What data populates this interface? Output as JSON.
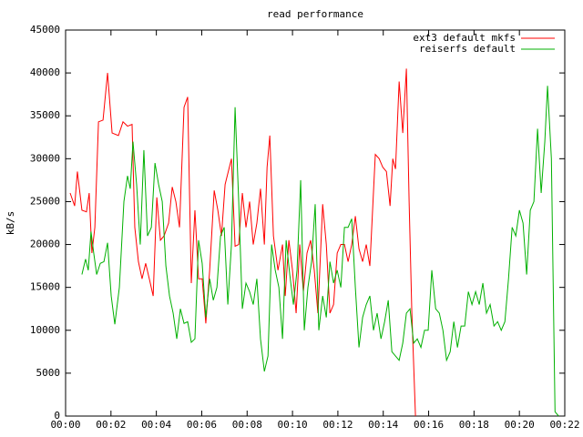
{
  "chart_data": {
    "type": "line",
    "title": "read performance",
    "y_label": "kB/s",
    "xlim": [
      0,
      22
    ],
    "ylim": [
      0,
      45000
    ],
    "xticks": [
      {
        "value": 0,
        "label": "00:00"
      },
      {
        "value": 2,
        "label": "00:02"
      },
      {
        "value": 4,
        "label": "00:04"
      },
      {
        "value": 6,
        "label": "00:06"
      },
      {
        "value": 8,
        "label": "00:08"
      },
      {
        "value": 10,
        "label": "00:10"
      },
      {
        "value": 12,
        "label": "00:12"
      },
      {
        "value": 14,
        "label": "00:14"
      },
      {
        "value": 16,
        "label": "00:16"
      },
      {
        "value": 18,
        "label": "00:18"
      },
      {
        "value": 20,
        "label": "00:20"
      },
      {
        "value": 22,
        "label": "00:22"
      }
    ],
    "yticks": [
      0,
      5000,
      10000,
      15000,
      20000,
      25000,
      30000,
      35000,
      40000,
      45000
    ],
    "grid": false,
    "legend": "top-right",
    "series": [
      {
        "name": "ext3 default mkfs",
        "color": "#ff0000",
        "x": [
          0.2,
          0.4,
          0.52,
          0.72,
          0.92,
          1.04,
          1.16,
          1.29,
          1.45,
          1.65,
          1.85,
          2.05,
          2.33,
          2.53,
          2.73,
          2.93,
          3.05,
          3.21,
          3.37,
          3.53,
          3.69,
          3.86,
          4.02,
          4.18,
          4.34,
          4.54,
          4.7,
          4.86,
          5.02,
          5.22,
          5.38,
          5.54,
          5.7,
          5.86,
          6.02,
          6.18,
          6.35,
          6.55,
          6.71,
          6.87,
          7.03,
          7.31,
          7.47,
          7.63,
          7.79,
          7.95,
          8.11,
          8.27,
          8.43,
          8.59,
          8.76,
          8.88,
          9.0,
          9.16,
          9.36,
          9.56,
          9.68,
          9.84,
          10.0,
          10.16,
          10.32,
          10.48,
          10.64,
          10.8,
          10.96,
          11.12,
          11.33,
          11.49,
          11.65,
          11.81,
          11.97,
          12.13,
          12.29,
          12.45,
          12.61,
          12.77,
          12.93,
          13.09,
          13.25,
          13.41,
          13.65,
          13.82,
          13.98,
          14.14,
          14.3,
          14.42,
          14.54,
          14.7,
          14.86,
          15.02,
          15.14,
          15.26,
          15.42
        ],
        "values": [
          26000,
          24500,
          28500,
          24000,
          23800,
          26000,
          19000,
          22000,
          34300,
          34500,
          40000,
          33000,
          32700,
          34300,
          33800,
          34000,
          22000,
          18000,
          16000,
          17800,
          16000,
          14000,
          25500,
          20500,
          21000,
          22500,
          26700,
          25000,
          22000,
          36000,
          37200,
          15500,
          24000,
          16000,
          16000,
          10800,
          17000,
          26300,
          24000,
          21000,
          27000,
          30000,
          19800,
          20000,
          26000,
          22000,
          25000,
          20000,
          22500,
          26500,
          20000,
          29000,
          32700,
          21000,
          17000,
          20000,
          14000,
          20500,
          17000,
          12000,
          20000,
          14500,
          19000,
          20500,
          17000,
          12000,
          24700,
          20000,
          12000,
          13000,
          19000,
          20000,
          20000,
          18000,
          20000,
          23300,
          19500,
          18000,
          20000,
          17500,
          30500,
          30000,
          29000,
          28500,
          24500,
          30000,
          28800,
          39000,
          33000,
          40500,
          25000,
          12000,
          0
        ]
      },
      {
        "name": "reiserfs default",
        "color": "#00b000",
        "x": [
          0.72,
          0.88,
          1.0,
          1.12,
          1.24,
          1.37,
          1.53,
          1.69,
          1.85,
          2.01,
          2.17,
          2.37,
          2.57,
          2.73,
          2.85,
          2.97,
          3.13,
          3.29,
          3.45,
          3.61,
          3.78,
          3.94,
          4.1,
          4.26,
          4.42,
          4.58,
          4.74,
          4.9,
          5.06,
          5.22,
          5.38,
          5.54,
          5.7,
          5.86,
          6.02,
          6.18,
          6.35,
          6.51,
          6.67,
          6.83,
          6.99,
          7.15,
          7.31,
          7.47,
          7.63,
          7.79,
          7.95,
          8.11,
          8.27,
          8.43,
          8.59,
          8.76,
          8.92,
          9.08,
          9.24,
          9.4,
          9.56,
          9.72,
          9.88,
          10.04,
          10.2,
          10.36,
          10.52,
          10.68,
          10.84,
          11.0,
          11.16,
          11.33,
          11.49,
          11.65,
          11.81,
          11.97,
          12.13,
          12.29,
          12.45,
          12.61,
          12.77,
          12.93,
          13.09,
          13.25,
          13.41,
          13.57,
          13.73,
          13.9,
          14.06,
          14.22,
          14.38,
          14.54,
          14.7,
          14.86,
          15.02,
          15.18,
          15.34,
          15.5,
          15.66,
          15.82,
          15.98,
          16.14,
          16.31,
          16.47,
          16.63,
          16.79,
          16.95,
          17.11,
          17.27,
          17.43,
          17.59,
          17.75,
          17.91,
          18.07,
          18.23,
          18.39,
          18.55,
          18.71,
          18.88,
          19.04,
          19.2,
          19.36,
          19.52,
          19.68,
          19.84,
          20.0,
          20.16,
          20.32,
          20.48,
          20.64,
          20.8,
          20.96,
          21.12,
          21.24,
          21.41,
          21.57,
          21.73
        ],
        "values": [
          16500,
          18300,
          17000,
          21500,
          19000,
          16500,
          17800,
          18000,
          20200,
          14000,
          10700,
          15000,
          25000,
          28000,
          26500,
          32000,
          27000,
          20000,
          31000,
          21000,
          22000,
          29500,
          27000,
          25000,
          17500,
          14000,
          12000,
          9000,
          12500,
          10800,
          11000,
          8600,
          9000,
          20500,
          17800,
          11500,
          16000,
          13500,
          15000,
          21000,
          22000,
          13000,
          20000,
          36000,
          25000,
          12500,
          15500,
          14500,
          13000,
          16000,
          9000,
          5200,
          7000,
          20000,
          17000,
          15000,
          9000,
          20500,
          16500,
          13000,
          17000,
          27500,
          10000,
          15000,
          18000,
          24700,
          10000,
          14000,
          11500,
          18000,
          15500,
          17000,
          15000,
          22000,
          22000,
          23000,
          15000,
          8000,
          11500,
          13000,
          14000,
          10000,
          12000,
          9000,
          11000,
          13500,
          7500,
          7000,
          6500,
          8500,
          12000,
          12500,
          8500,
          9000,
          8000,
          10000,
          10000,
          17000,
          12500,
          12000,
          10000,
          6500,
          7500,
          11000,
          8000,
          10500,
          10500,
          14500,
          13000,
          14500,
          13000,
          15500,
          12000,
          13000,
          10500,
          11000,
          10000,
          11000,
          16000,
          22000,
          21000,
          24000,
          22500,
          16500,
          24000,
          25000,
          33500,
          26000,
          32000,
          38500,
          30000,
          500,
          0
        ]
      }
    ]
  }
}
